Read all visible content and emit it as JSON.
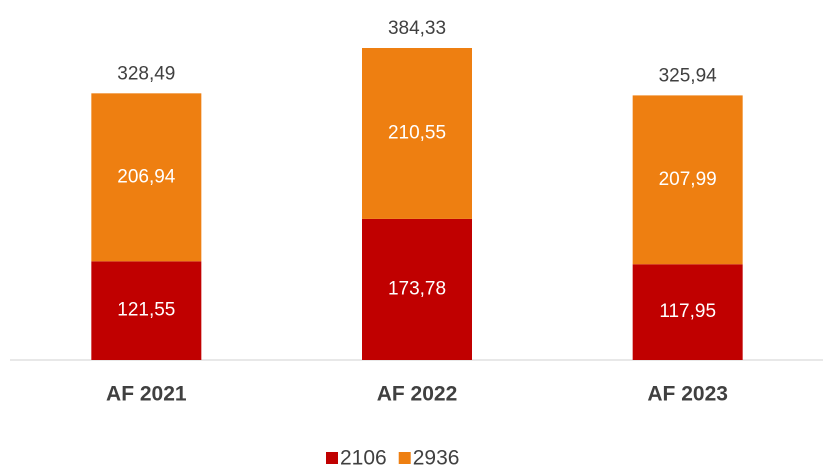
{
  "chart_data": {
    "type": "stacked_bar",
    "categories": [
      "AF 2021",
      "AF 2022",
      "AF 2023"
    ],
    "series": [
      {
        "name": "2106",
        "color": "#c00000",
        "values": [
          121.55,
          173.78,
          117.95
        ],
        "value_labels": [
          "121,55",
          "173,78",
          "117,95"
        ]
      },
      {
        "name": "2936",
        "color": "#ee7f11",
        "values": [
          206.94,
          210.55,
          207.99
        ],
        "value_labels": [
          "206,94",
          "210,55",
          "207,99"
        ]
      }
    ],
    "totals": [
      328.49,
      384.33,
      325.94
    ],
    "total_labels": [
      "328,49",
      "384,33",
      "325,94"
    ],
    "legend": "bottom"
  }
}
